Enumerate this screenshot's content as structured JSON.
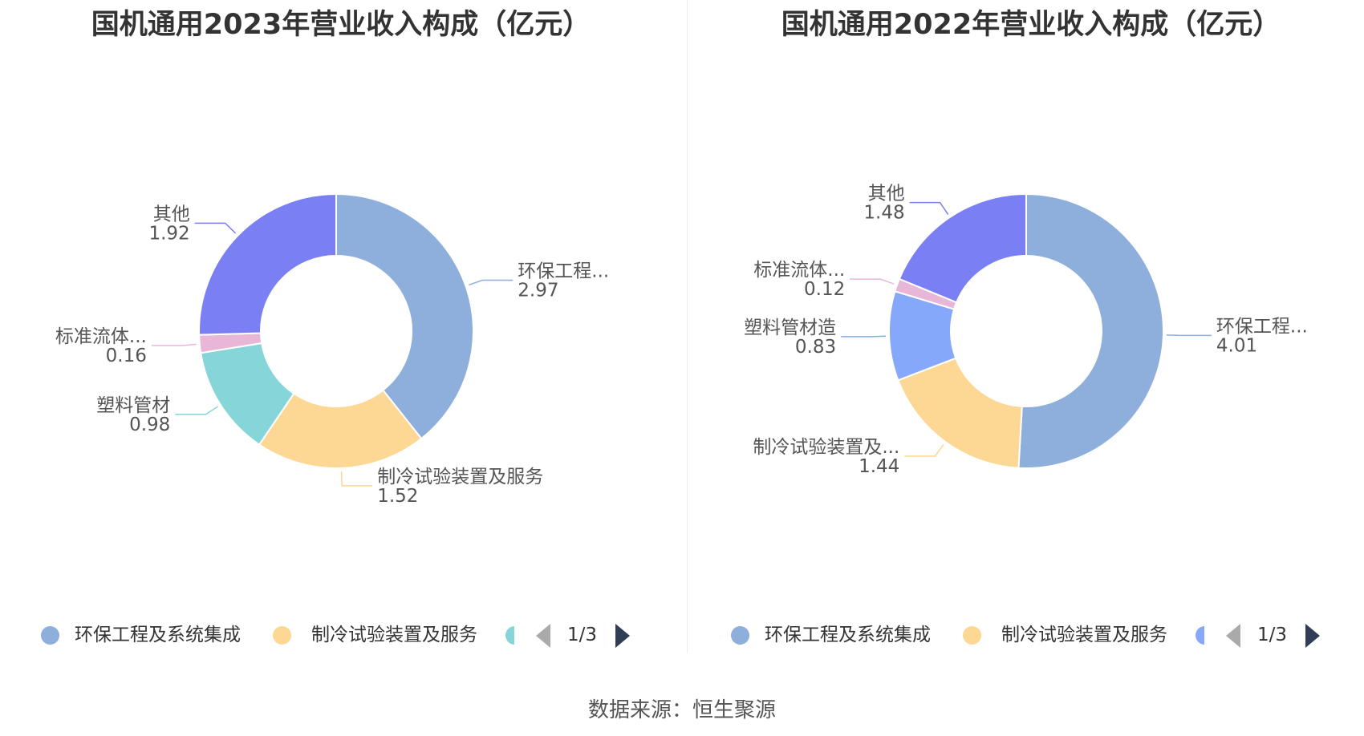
{
  "source_label": "数据来源：恒生聚源",
  "chart_data": [
    {
      "type": "pie",
      "style": "donut",
      "title": "国机通用2023年营业收入构成（亿元）",
      "slices": [
        {
          "name": "环保工程及系统集成",
          "label": "环保工程...",
          "value": 2.97,
          "display": "2.97",
          "color": "#8eaedb"
        },
        {
          "name": "制冷试验装置及服务",
          "label": "制冷试验装置及服务",
          "value": 1.52,
          "display": "1.52",
          "color": "#fdd794"
        },
        {
          "name": "塑料管材",
          "label": "塑料管材",
          "value": 0.98,
          "display": "0.98",
          "color": "#86d5d8"
        },
        {
          "name": "标准流体...",
          "label": "标准流体...",
          "value": 0.16,
          "display": "0.16",
          "color": "#e8b7d8"
        },
        {
          "name": "其他",
          "label": "其他",
          "value": 1.92,
          "display": "1.92",
          "color": "#7a80f4"
        }
      ],
      "legend": {
        "position": "bottom",
        "items": [
          {
            "label": "环保工程及系统集成",
            "color": "#8eaedb"
          },
          {
            "label": "制冷试验装置及服务",
            "color": "#fdd794"
          },
          {
            "label": "",
            "color": "#86d5d8"
          }
        ],
        "page": "1/3"
      }
    },
    {
      "type": "pie",
      "style": "donut",
      "title": "国机通用2022年营业收入构成（亿元）",
      "slices": [
        {
          "name": "环保工程及系统集成",
          "label": "环保工程...",
          "value": 4.01,
          "display": "4.01",
          "color": "#8eaedb"
        },
        {
          "name": "制冷试验装置及...",
          "label": "制冷试验装置及...",
          "value": 1.44,
          "display": "1.44",
          "color": "#fdd794"
        },
        {
          "name": "塑料管材造",
          "label": "塑料管材造",
          "value": 0.83,
          "display": "0.83",
          "color": "#86a8fb"
        },
        {
          "name": "标准流体...",
          "label": "标准流体...",
          "value": 0.12,
          "display": "0.12",
          "color": "#e8b7d8"
        },
        {
          "name": "其他",
          "label": "其他",
          "value": 1.48,
          "display": "1.48",
          "color": "#7a80f4"
        }
      ],
      "legend": {
        "position": "bottom",
        "items": [
          {
            "label": "环保工程及系统集成",
            "color": "#8eaedb"
          },
          {
            "label": "制冷试验装置及服务",
            "color": "#fdd794"
          },
          {
            "label": "",
            "color": "#86a8fb"
          }
        ],
        "page": "1/3"
      }
    }
  ]
}
